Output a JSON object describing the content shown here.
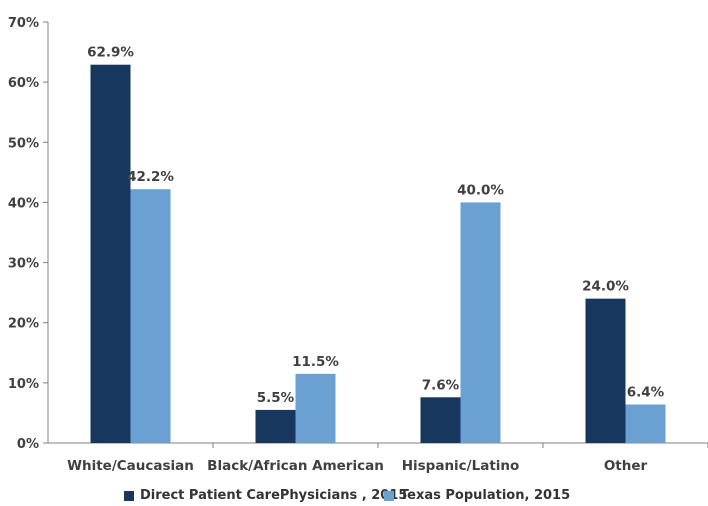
{
  "chart_data": {
    "type": "bar",
    "categories": [
      "White/Caucasian",
      "Black/African American",
      "Hispanic/Latino",
      "Other"
    ],
    "series": [
      {
        "name": "Direct Patient CarePhysicians , 2015",
        "color": "#17375e",
        "values": [
          62.9,
          5.5,
          7.6,
          24.0
        ],
        "labels": [
          "62.9%",
          "5.5%",
          "7.6%",
          "24.0%"
        ]
      },
      {
        "name": "Texas Population, 2015",
        "color": "#6aa0d2",
        "values": [
          42.2,
          11.5,
          40.0,
          6.4
        ],
        "labels": [
          "42.2%",
          "11.5%",
          "40.0%",
          "6.4%"
        ]
      }
    ],
    "ylim": [
      0,
      70
    ],
    "yticks": [
      0,
      10,
      20,
      30,
      40,
      50,
      60,
      70
    ],
    "ytick_labels": [
      "0%",
      "10%",
      "20%",
      "30%",
      "40%",
      "50%",
      "60%",
      "70%"
    ],
    "grid": false,
    "legend_position": "bottom"
  }
}
